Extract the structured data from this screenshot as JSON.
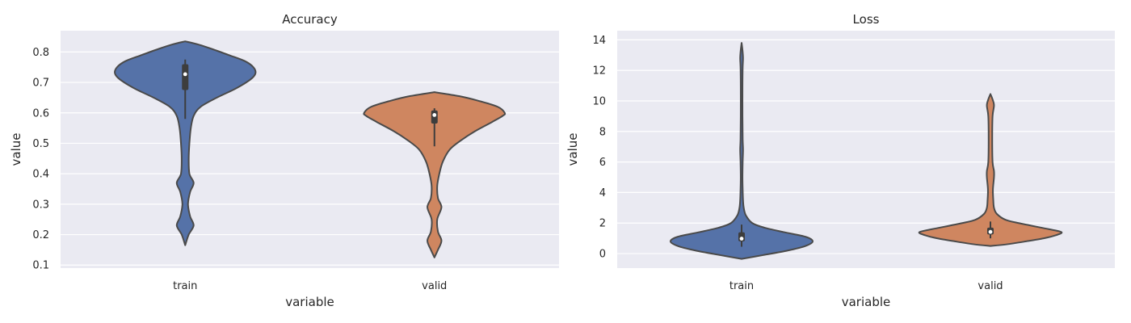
{
  "chart_data": [
    {
      "type": "violin",
      "title": "Accuracy",
      "xlabel": "variable",
      "ylabel": "value",
      "categories": [
        "train",
        "valid"
      ],
      "ylim": [
        0.09,
        0.87
      ],
      "yticks": [
        0.1,
        0.2,
        0.3,
        0.4,
        0.5,
        0.6,
        0.7,
        0.8
      ],
      "ytick_labels": [
        "0.1",
        "0.2",
        "0.3",
        "0.4",
        "0.5",
        "0.6",
        "0.7",
        "0.8"
      ],
      "grid": true,
      "colors": [
        "#5572a8",
        "#cf8660"
      ],
      "violins": [
        {
          "category": "train",
          "min": 0.165,
          "max": 0.835,
          "q1": 0.675,
          "median": 0.727,
          "q3": 0.76,
          "whisker_low": 0.58,
          "whisker_high": 0.775,
          "density": [
            [
              0.165,
              0.0
            ],
            [
              0.2,
              0.05
            ],
            [
              0.23,
              0.12
            ],
            [
              0.26,
              0.07
            ],
            [
              0.3,
              0.04
            ],
            [
              0.34,
              0.07
            ],
            [
              0.37,
              0.12
            ],
            [
              0.4,
              0.06
            ],
            [
              0.45,
              0.05
            ],
            [
              0.5,
              0.06
            ],
            [
              0.55,
              0.08
            ],
            [
              0.59,
              0.12
            ],
            [
              0.62,
              0.22
            ],
            [
              0.65,
              0.45
            ],
            [
              0.68,
              0.72
            ],
            [
              0.71,
              0.93
            ],
            [
              0.73,
              1.0
            ],
            [
              0.75,
              0.97
            ],
            [
              0.77,
              0.85
            ],
            [
              0.79,
              0.62
            ],
            [
              0.81,
              0.38
            ],
            [
              0.825,
              0.18
            ],
            [
              0.835,
              0.0
            ]
          ]
        },
        {
          "category": "valid",
          "min": 0.125,
          "max": 0.668,
          "q1": 0.565,
          "median": 0.593,
          "q3": 0.608,
          "whisker_low": 0.49,
          "whisker_high": 0.615,
          "density": [
            [
              0.125,
              0.0
            ],
            [
              0.15,
              0.05
            ],
            [
              0.18,
              0.1
            ],
            [
              0.21,
              0.05
            ],
            [
              0.25,
              0.04
            ],
            [
              0.29,
              0.1
            ],
            [
              0.32,
              0.05
            ],
            [
              0.36,
              0.04
            ],
            [
              0.4,
              0.07
            ],
            [
              0.44,
              0.12
            ],
            [
              0.48,
              0.22
            ],
            [
              0.51,
              0.38
            ],
            [
              0.54,
              0.58
            ],
            [
              0.57,
              0.82
            ],
            [
              0.59,
              0.97
            ],
            [
              0.6,
              1.0
            ],
            [
              0.62,
              0.9
            ],
            [
              0.64,
              0.62
            ],
            [
              0.655,
              0.35
            ],
            [
              0.668,
              0.0
            ]
          ]
        }
      ]
    },
    {
      "type": "violin",
      "title": "Loss",
      "xlabel": "variable",
      "ylabel": "value",
      "categories": [
        "train",
        "valid"
      ],
      "ylim": [
        -0.95,
        14.6
      ],
      "yticks": [
        0,
        2,
        4,
        6,
        8,
        10,
        12,
        14
      ],
      "ytick_labels": [
        "0",
        "2",
        "4",
        "6",
        "8",
        "10",
        "12",
        "14"
      ],
      "grid": true,
      "colors": [
        "#5572a8",
        "#cf8660"
      ],
      "violins": [
        {
          "category": "train",
          "min": -0.35,
          "max": 13.8,
          "q1": 0.8,
          "median": 0.98,
          "q3": 1.4,
          "whisker_low": 0.45,
          "whisker_high": 1.9,
          "density": [
            [
              -0.35,
              0.0
            ],
            [
              -0.1,
              0.3
            ],
            [
              0.2,
              0.65
            ],
            [
              0.5,
              0.9
            ],
            [
              0.8,
              1.0
            ],
            [
              1.1,
              0.9
            ],
            [
              1.4,
              0.6
            ],
            [
              1.7,
              0.32
            ],
            [
              2.0,
              0.15
            ],
            [
              2.5,
              0.06
            ],
            [
              3.0,
              0.03
            ],
            [
              3.5,
              0.02
            ],
            [
              4.2,
              0.015
            ],
            [
              5.0,
              0.012
            ],
            [
              6.0,
              0.015
            ],
            [
              6.8,
              0.02
            ],
            [
              7.5,
              0.015
            ],
            [
              9.0,
              0.012
            ],
            [
              11.0,
              0.012
            ],
            [
              12.2,
              0.015
            ],
            [
              12.8,
              0.02
            ],
            [
              13.3,
              0.013
            ],
            [
              13.8,
              0.0
            ]
          ]
        },
        {
          "category": "valid",
          "min": 0.5,
          "max": 10.45,
          "q1": 1.25,
          "median": 1.42,
          "q3": 1.7,
          "whisker_low": 1.0,
          "whisker_high": 2.1,
          "density": [
            [
              0.5,
              0.0
            ],
            [
              0.6,
              0.22
            ],
            [
              0.8,
              0.5
            ],
            [
              1.0,
              0.75
            ],
            [
              1.2,
              0.92
            ],
            [
              1.4,
              1.0
            ],
            [
              1.6,
              0.82
            ],
            [
              1.9,
              0.5
            ],
            [
              2.2,
              0.22
            ],
            [
              2.6,
              0.09
            ],
            [
              3.0,
              0.05
            ],
            [
              3.5,
              0.04
            ],
            [
              4.2,
              0.035
            ],
            [
              5.0,
              0.05
            ],
            [
              5.4,
              0.05
            ],
            [
              6.0,
              0.03
            ],
            [
              7.5,
              0.025
            ],
            [
              9.0,
              0.03
            ],
            [
              9.7,
              0.05
            ],
            [
              10.1,
              0.03
            ],
            [
              10.45,
              0.0
            ]
          ]
        }
      ]
    }
  ]
}
